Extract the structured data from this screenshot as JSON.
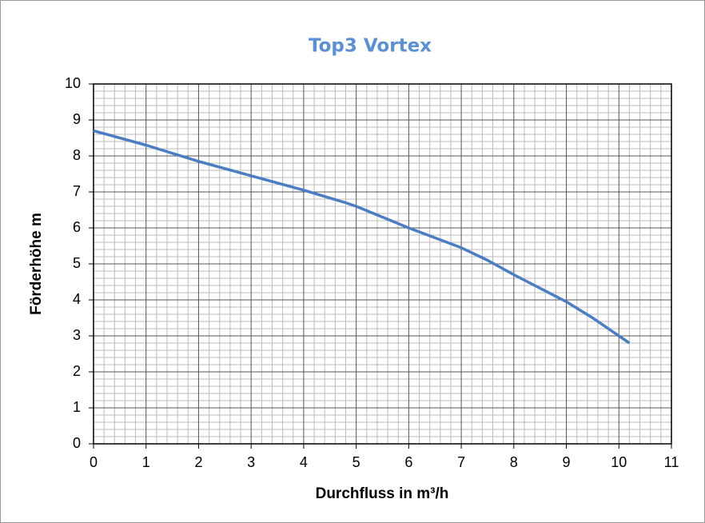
{
  "chart_data": {
    "type": "line",
    "title": "Top3 Vortex",
    "x_label": "Durchfluss  in m³/h",
    "y_label": "Förderhöhe  m",
    "x": [
      0,
      1,
      2,
      3,
      4,
      4.8,
      5,
      6,
      7,
      7.5,
      8,
      9,
      9.5,
      10.2
    ],
    "series": [
      {
        "name": "Top3 Vortex",
        "color": "#4a7ec4",
        "values": [
          8.7,
          8.3,
          7.85,
          7.45,
          7.05,
          6.7,
          6.6,
          6.0,
          5.45,
          5.1,
          4.7,
          3.95,
          3.5,
          2.8
        ]
      }
    ],
    "xlim": [
      0,
      11
    ],
    "xticks": [
      0,
      1,
      2,
      3,
      4,
      5,
      6,
      7,
      8,
      9,
      10,
      11
    ],
    "ylim": [
      0,
      10
    ],
    "yticks": [
      0,
      1,
      2,
      3,
      4,
      5,
      6,
      7,
      8,
      9,
      10
    ],
    "grid": true,
    "minor_grid": 5
  }
}
